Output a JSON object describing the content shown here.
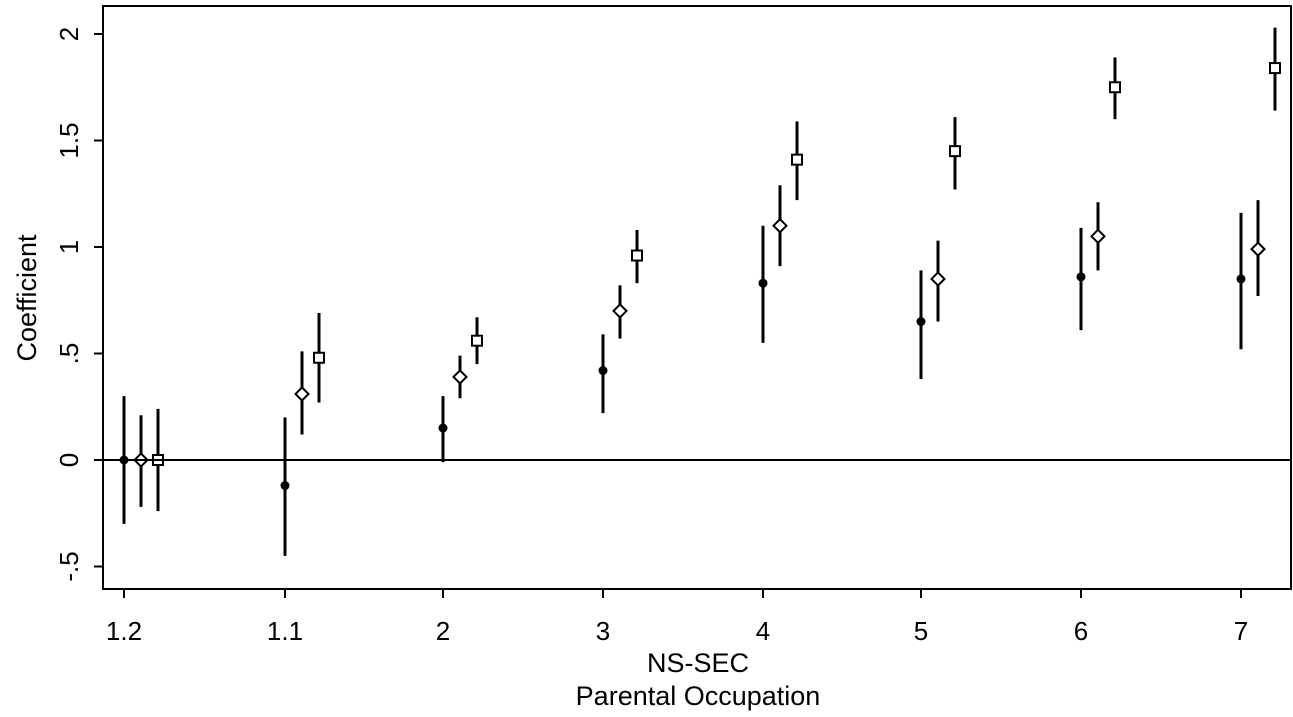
{
  "chart_data": {
    "type": "scatter",
    "subtype": "coefficient plot with confidence intervals",
    "categories": [
      "1.2",
      "1.1",
      "2",
      "3",
      "4",
      "5",
      "6",
      "7"
    ],
    "xlabel_lines": [
      "NS-SEC",
      "Parental Occupation"
    ],
    "ylabel": "Coefficient",
    "ylim": [
      -0.6,
      2.12
    ],
    "yticks": [
      {
        "value": -0.5,
        "label": "-.5"
      },
      {
        "value": 0,
        "label": "0"
      },
      {
        "value": 0.5,
        "label": ".5"
      },
      {
        "value": 1,
        "label": "1"
      },
      {
        "value": 1.5,
        "label": "1.5"
      },
      {
        "value": 2,
        "label": "2"
      }
    ],
    "reference_line": 0,
    "grid": false,
    "legend": "none",
    "series": [
      {
        "marker": "filled-circle",
        "color": "#000000",
        "values": [
          0.0,
          -0.12,
          0.15,
          0.42,
          0.83,
          0.65,
          0.86,
          0.85
        ],
        "ci_low": [
          -0.3,
          -0.45,
          -0.01,
          0.22,
          0.55,
          0.38,
          0.61,
          0.52
        ],
        "ci_high": [
          0.3,
          0.2,
          0.3,
          0.59,
          1.1,
          0.89,
          1.09,
          1.16
        ]
      },
      {
        "marker": "hollow-diamond",
        "color": "#000000",
        "values": [
          0.0,
          0.31,
          0.39,
          0.7,
          1.1,
          0.85,
          1.05,
          0.99
        ],
        "ci_low": [
          -0.22,
          0.12,
          0.29,
          0.57,
          0.91,
          0.65,
          0.89,
          0.77
        ],
        "ci_high": [
          0.21,
          0.51,
          0.49,
          0.82,
          1.29,
          1.03,
          1.21,
          1.22
        ]
      },
      {
        "marker": "hollow-square",
        "color": "#000000",
        "values": [
          0.0,
          0.48,
          0.56,
          0.96,
          1.41,
          1.45,
          1.75,
          1.84
        ],
        "ci_low": [
          -0.24,
          0.27,
          0.45,
          0.83,
          1.22,
          1.27,
          1.6,
          1.64
        ],
        "ci_high": [
          0.24,
          0.69,
          0.67,
          1.08,
          1.59,
          1.61,
          1.89,
          2.03
        ]
      }
    ]
  }
}
